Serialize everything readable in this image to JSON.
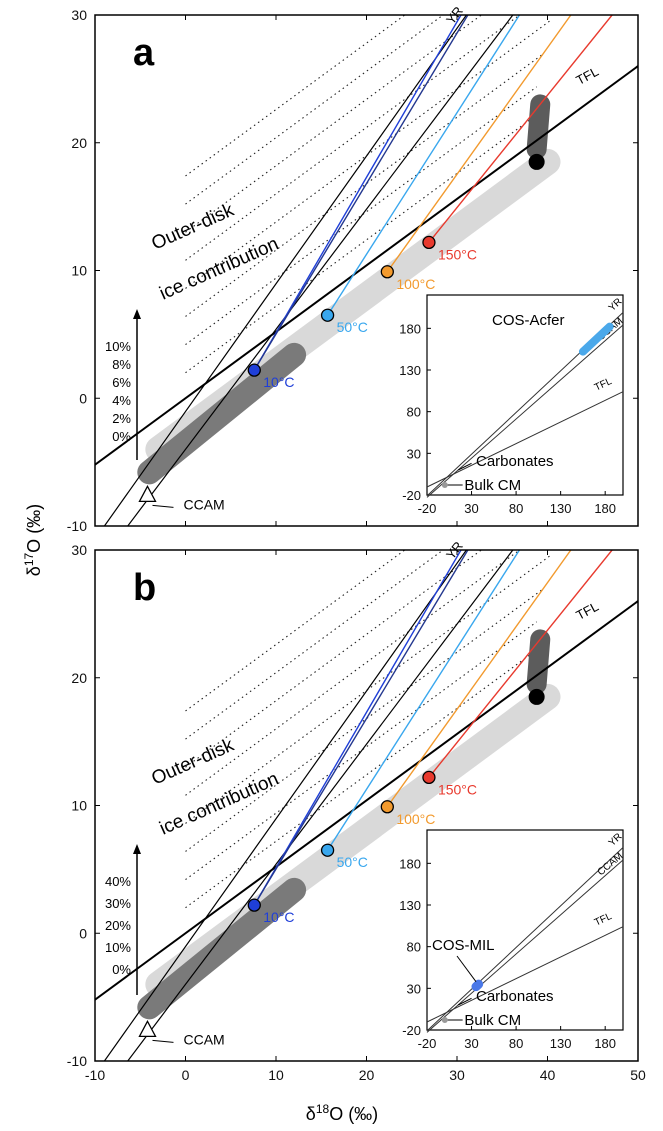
{
  "chart_data": [
    {
      "panel": "a",
      "type": "line",
      "xlim": [
        -10,
        50
      ],
      "ylim": [
        -10,
        30
      ],
      "x_ticks": [
        -10,
        0,
        10,
        20,
        30,
        40,
        50
      ],
      "y_ticks": [
        -10,
        0,
        10,
        20,
        30
      ],
      "reference_lines": [
        {
          "name": "YR",
          "slope": 1.0,
          "intercept": -1.04
        },
        {
          "name": "CCAM",
          "slope": 0.94,
          "intercept": -4.0
        },
        {
          "name": "TFL",
          "slope": 0.52,
          "intercept": 0.0
        }
      ],
      "temperature_points": [
        {
          "label": "10°C",
          "x": 7.6,
          "y": 2.2,
          "color": "#1f3fd8"
        },
        {
          "label": "50°C",
          "x": 15.7,
          "y": 6.5,
          "color": "#39a7ee"
        },
        {
          "label": "100°C",
          "x": 22.3,
          "y": 9.9,
          "color": "#f29a2e"
        },
        {
          "label": "150°C",
          "x": 26.9,
          "y": 12.2,
          "color": "#e83a2e"
        }
      ],
      "triangle_point": {
        "label": "CCAM",
        "x": -4.2,
        "y": -7.6
      },
      "black_point": {
        "x": 38.8,
        "y": 18.5
      },
      "mixing_line_end_y": 30,
      "ice_scale": {
        "title": "Outer-disk\nice contribution",
        "ticks": [
          "10%",
          "8%",
          "6%",
          "4%",
          "2%",
          "0%"
        ]
      },
      "inset": {
        "x_ticks": [
          "-20",
          "30",
          "80",
          "130",
          "180"
        ],
        "y_ticks": [
          "180",
          "130",
          "80",
          "30",
          "-20"
        ],
        "xlim": [
          -20,
          200
        ],
        "ylim": [
          -20,
          220
        ],
        "lines": [
          "YR",
          "CCAM",
          "TFL"
        ],
        "highlight": {
          "label": "COS-Acfer",
          "x": [
            155,
            185
          ],
          "y": [
            152,
            182
          ],
          "color": "#4aa8ea"
        },
        "labels": [
          "Carbonates",
          "Bulk CM"
        ]
      }
    },
    {
      "panel": "b",
      "type": "line",
      "xlim": [
        -10,
        50
      ],
      "ylim": [
        -10,
        30
      ],
      "x_ticks": [
        -10,
        0,
        10,
        20,
        30,
        40,
        50
      ],
      "y_ticks": [
        -10,
        0,
        10,
        20,
        30
      ],
      "reference_lines": [
        {
          "name": "YR",
          "slope": 1.0,
          "intercept": -1.04
        },
        {
          "name": "CCAM",
          "slope": 0.94,
          "intercept": -4.0
        },
        {
          "name": "TFL",
          "slope": 0.52,
          "intercept": 0.0
        }
      ],
      "temperature_points": [
        {
          "label": "10°C",
          "x": 7.6,
          "y": 2.2,
          "color": "#1f3fd8"
        },
        {
          "label": "50°C",
          "x": 15.7,
          "y": 6.5,
          "color": "#39a7ee"
        },
        {
          "label": "100°C",
          "x": 22.3,
          "y": 9.9,
          "color": "#f29a2e"
        },
        {
          "label": "150°C",
          "x": 26.9,
          "y": 12.2,
          "color": "#e83a2e"
        }
      ],
      "triangle_point": {
        "label": "CCAM",
        "x": -4.2,
        "y": -7.6
      },
      "black_point": {
        "x": 38.8,
        "y": 18.5
      },
      "mixing_line_end_y": 30,
      "ice_scale": {
        "title": "Outer-disk\nice contribution",
        "ticks": [
          "40%",
          "30%",
          "20%",
          "10%",
          "0%"
        ]
      },
      "inset": {
        "x_ticks": [
          "-20",
          "30",
          "80",
          "130",
          "180"
        ],
        "y_ticks": [
          "180",
          "130",
          "80",
          "30",
          "-20"
        ],
        "xlim": [
          -20,
          200
        ],
        "ylim": [
          -20,
          220
        ],
        "lines": [
          "YR",
          "CCAM",
          "TFL"
        ],
        "highlight": {
          "label": "COS-MIL",
          "x": [
            35,
            38
          ],
          "y": [
            32,
            35
          ],
          "color": "#4a78e8"
        },
        "labels": [
          "Carbonates",
          "Bulk CM"
        ]
      }
    }
  ],
  "axes": {
    "x_title": "δ18O (‰)",
    "y_title": "δ17O (‰)",
    "x_title_parts": [
      "δ",
      "18",
      "O (‰)"
    ],
    "y_title_parts": [
      "δ",
      "17",
      "O (‰)"
    ]
  },
  "colors": {
    "dark_gray_band": "#7a7a7a",
    "light_gray_band": "#d9d9d9",
    "darkest_band": "#5c5c5c"
  }
}
